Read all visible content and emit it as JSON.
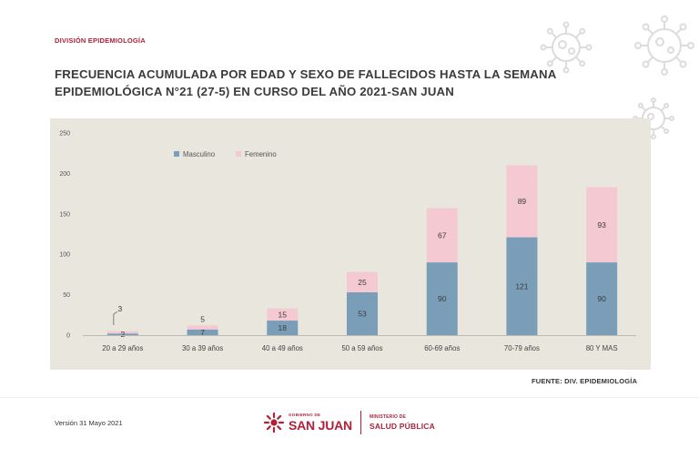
{
  "header": {
    "division": "DIVISIÓN EPIDEMIOLOGÍA",
    "title_line1": "FRECUENCIA ACUMULADA POR EDAD Y SEXO DE FALLECIDOS HASTA LA SEMANA",
    "title_line2": "EPIDEMIOLÓGICA N°21 (27-5) EN CURSO DEL AÑO 2021-SAN JUAN"
  },
  "chart_data": {
    "type": "bar",
    "stacked": true,
    "categories": [
      "20 a 29 años",
      "30 a 39 años",
      "40 a 49 años",
      "50 a 59 años",
      "60-69 años",
      "70-79 años",
      "80 Y MAS"
    ],
    "series": [
      {
        "name": "Masculino",
        "color": "#7a9eb8",
        "values": [
          2,
          7,
          18,
          53,
          90,
          121,
          90
        ]
      },
      {
        "name": "Femenino",
        "color": "#f4c9d2",
        "values": [
          3,
          5,
          15,
          25,
          67,
          89,
          93
        ]
      }
    ],
    "y_ticks": [
      "0",
      "50",
      "100",
      "150",
      "200",
      "250"
    ],
    "ylim": [
      0,
      250
    ],
    "legend_position": "top-left",
    "grid": false,
    "background": "#e9e6dd"
  },
  "source": "FUENTE: DIV. EPIDEMIOLOGÍA",
  "footer": {
    "version": "Versión 31 Mayo 2021",
    "gov_small": "GOBIERNO DE",
    "gov_big": "SAN JUAN",
    "ministry_small": "MINISTERIO DE",
    "ministry_big": "SALUD PÚBLICA"
  }
}
